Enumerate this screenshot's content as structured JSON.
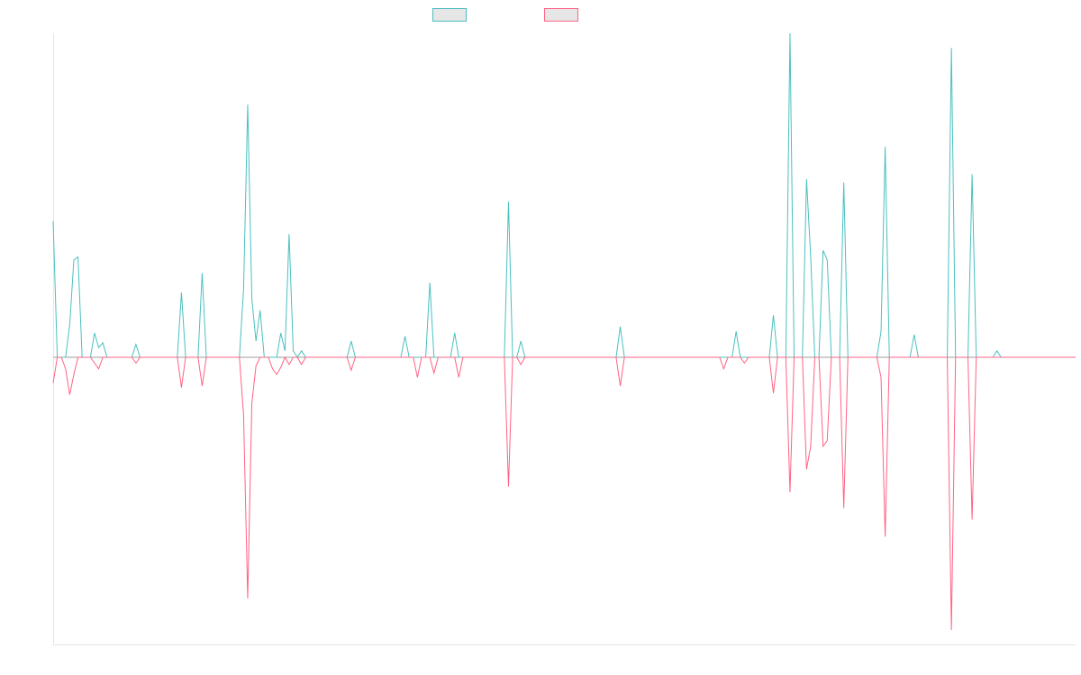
{
  "chart_data": {
    "type": "line",
    "title": "",
    "xlabel": "",
    "ylabel": "",
    "grid": false,
    "legend_position": "top-center",
    "ylim": [
      -1,
      1
    ],
    "x_count": 248,
    "series": [
      {
        "name": "",
        "color": "#4bc0c0",
        "points": [
          [
            0,
            0.42
          ],
          [
            1,
            0
          ],
          [
            4,
            0.1
          ],
          [
            5,
            0.3
          ],
          [
            6,
            0.31
          ],
          [
            7,
            0
          ],
          [
            10,
            0.075
          ],
          [
            11,
            0.03
          ],
          [
            12,
            0.045
          ],
          [
            20,
            0.04
          ],
          [
            31,
            0.2
          ],
          [
            36,
            0.26
          ],
          [
            46,
            0.21
          ],
          [
            47,
            0.78
          ],
          [
            48,
            0.18
          ],
          [
            49,
            0.05
          ],
          [
            50,
            0.145
          ],
          [
            55,
            0.075
          ],
          [
            56,
            0.02
          ],
          [
            57,
            0.38
          ],
          [
            58,
            0.02
          ],
          [
            60,
            0.02
          ],
          [
            72,
            0.05
          ],
          [
            85,
            0.065
          ],
          [
            91,
            0.23
          ],
          [
            97,
            0.075
          ],
          [
            110,
            0.48
          ],
          [
            113,
            0.05
          ],
          [
            137,
            0.095
          ],
          [
            165,
            0.08
          ],
          [
            174,
            0.13
          ],
          [
            178,
            1.0
          ],
          [
            182,
            0.55
          ],
          [
            183,
            0.31
          ],
          [
            186,
            0.33
          ],
          [
            187,
            0.3
          ],
          [
            191,
            0.54
          ],
          [
            200,
            0.08
          ],
          [
            201,
            0.65
          ],
          [
            208,
            0.07
          ],
          [
            217,
            0.955
          ],
          [
            222,
            0.565
          ],
          [
            228,
            0.02
          ]
        ]
      },
      {
        "name": "",
        "color": "#ff6384",
        "points": [
          [
            0,
            -0.09
          ],
          [
            1,
            0
          ],
          [
            3,
            -0.04
          ],
          [
            4,
            -0.13
          ],
          [
            5,
            -0.06
          ],
          [
            7,
            0
          ],
          [
            10,
            -0.02
          ],
          [
            11,
            -0.04
          ],
          [
            20,
            -0.02
          ],
          [
            31,
            -0.105
          ],
          [
            36,
            -0.1
          ],
          [
            46,
            -0.2
          ],
          [
            47,
            -0.84
          ],
          [
            48,
            -0.16
          ],
          [
            49,
            -0.03
          ],
          [
            53,
            -0.04
          ],
          [
            54,
            -0.06
          ],
          [
            55,
            -0.035
          ],
          [
            57,
            -0.025
          ],
          [
            60,
            -0.025
          ],
          [
            72,
            -0.045
          ],
          [
            88,
            -0.07
          ],
          [
            92,
            -0.055
          ],
          [
            98,
            -0.07
          ],
          [
            110,
            -0.45
          ],
          [
            113,
            -0.025
          ],
          [
            137,
            -0.1
          ],
          [
            162,
            -0.04
          ],
          [
            167,
            -0.02
          ],
          [
            174,
            -0.125
          ],
          [
            178,
            -0.47
          ],
          [
            182,
            -0.39
          ],
          [
            183,
            -0.31
          ],
          [
            186,
            -0.31
          ],
          [
            187,
            -0.29
          ],
          [
            191,
            -0.525
          ],
          [
            200,
            -0.07
          ],
          [
            201,
            -0.625
          ],
          [
            217,
            -0.95
          ],
          [
            222,
            -0.565
          ]
        ]
      }
    ]
  }
}
